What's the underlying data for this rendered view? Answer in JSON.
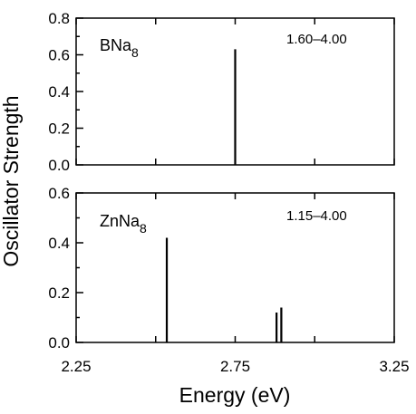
{
  "chart_data": [
    {
      "type": "bar",
      "panel": "top",
      "label_main": "BNa",
      "label_sub": "8",
      "range_label": "1.60–4.00",
      "x": [
        2.75
      ],
      "values": [
        0.63
      ],
      "xlim": [
        2.25,
        3.25
      ],
      "ylim": [
        0.0,
        0.8
      ],
      "yticks": [
        "0.0",
        "0.2",
        "0.4",
        "0.6",
        "0.8"
      ],
      "ytick_values": [
        0.0,
        0.2,
        0.4,
        0.6,
        0.8
      ]
    },
    {
      "type": "bar",
      "panel": "bottom",
      "label_main": "ZnNa",
      "label_sub": "8",
      "range_label": "1.15–4.00",
      "x": [
        2.535,
        2.88,
        2.895
      ],
      "values": [
        0.42,
        0.12,
        0.14
      ],
      "xlim": [
        2.25,
        3.25
      ],
      "ylim": [
        0.0,
        0.6
      ],
      "yticks": [
        "0.0",
        "0.2",
        "0.4",
        "0.6"
      ],
      "ytick_values": [
        0.0,
        0.2,
        0.4,
        0.6
      ]
    }
  ],
  "x_axis": {
    "ticks": [
      "2.25",
      "2.75",
      "3.25"
    ],
    "tick_values": [
      2.25,
      2.75,
      3.25
    ],
    "label": "Energy (eV)"
  },
  "y_axis": {
    "label": "Oscillator Strength"
  }
}
